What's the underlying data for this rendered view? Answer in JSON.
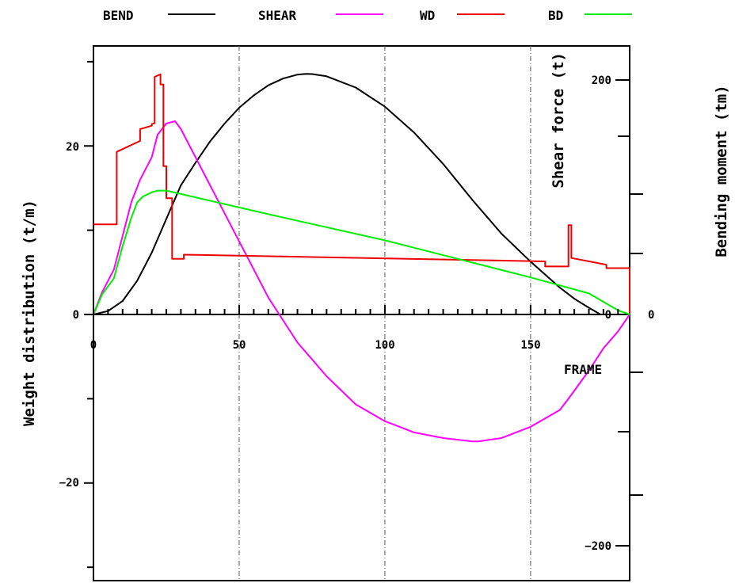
{
  "chart_data": {
    "type": "line",
    "legend_position": "top",
    "legend": [
      {
        "label": "BEND",
        "color": "#000000"
      },
      {
        "label": "SHEAR",
        "color": "#ff00ff"
      },
      {
        "label": "WD",
        "color": "#ee0000"
      },
      {
        "label": "BD",
        "color": "#00ee00"
      }
    ],
    "x_axis": {
      "label": "FRAME",
      "range": [
        0,
        184
      ],
      "ticks": [
        0,
        50,
        100,
        150
      ],
      "tick_labels": [
        "0",
        "50",
        "100",
        "150"
      ],
      "gridlines": [
        50,
        100,
        150
      ]
    },
    "y_left": {
      "label": "Weight distribution (t/m)",
      "range": [
        -32,
        32
      ],
      "ticks": [
        0,
        20,
        -20
      ],
      "tick_labels": [
        "0",
        "20",
        "−20"
      ]
    },
    "y_shear": {
      "label": "Shear force (t)",
      "range": [
        -240,
        240
      ],
      "ticks": [
        0,
        200,
        -200
      ],
      "tick_labels": [
        "0",
        "200",
        "−200"
      ]
    },
    "y_bend": {
      "label": "Bending moment (tm)",
      "range": [
        -2400,
        2400
      ],
      "tick_labels": [
        "0"
      ]
    },
    "series": [
      {
        "name": "BEND",
        "axis": "bend",
        "color": "#000000",
        "x": [
          0,
          5,
          10,
          15,
          20,
          25,
          30,
          35,
          40,
          45,
          50,
          55,
          60,
          65,
          70,
          73,
          75,
          80,
          90,
          100,
          110,
          120,
          130,
          140,
          150,
          160,
          165,
          170,
          174
        ],
        "y": [
          0,
          30,
          120,
          300,
          550,
          850,
          1150,
          1350,
          1540,
          1700,
          1840,
          1950,
          2040,
          2100,
          2135,
          2142,
          2140,
          2120,
          2020,
          1850,
          1620,
          1340,
          1020,
          720,
          470,
          240,
          140,
          60,
          0
        ]
      },
      {
        "name": "SHEAR",
        "axis": "shear",
        "color": "#ff00ff",
        "x": [
          0,
          3,
          7,
          10,
          13,
          16,
          20,
          22,
          25,
          28,
          30,
          35,
          40,
          45,
          50,
          60,
          70,
          75,
          80,
          90,
          100,
          110,
          120,
          130,
          132,
          140,
          150,
          160,
          163,
          170,
          175,
          180,
          184
        ],
        "y": [
          0,
          20,
          40,
          70,
          100,
          120,
          140,
          160,
          170,
          172,
          165,
          140,
          115,
          90,
          65,
          15,
          -25,
          -40,
          -55,
          -80,
          -95,
          -105,
          -110,
          -113,
          -113,
          -110,
          -100,
          -85,
          -75,
          -50,
          -30,
          -15,
          0
        ]
      },
      {
        "name": "WD",
        "axis": "left",
        "color": "#ee0000",
        "x": [
          0,
          0,
          8,
          8,
          16,
          16,
          20,
          20,
          21,
          21,
          23,
          23,
          24,
          24,
          25,
          25,
          27,
          27,
          28,
          28,
          31,
          31,
          155,
          155,
          163,
          163,
          164,
          164,
          176,
          176,
          184,
          184
        ],
        "y": [
          10.7,
          10.7,
          10.7,
          19.3,
          20.6,
          22,
          22.4,
          22.6,
          22.7,
          28.2,
          28.5,
          27.3,
          27.3,
          17.6,
          17.6,
          13.8,
          13.8,
          6.6,
          6.6,
          6.6,
          6.6,
          7.1,
          6.3,
          5.7,
          5.7,
          10.6,
          10.6,
          6.7,
          5.9,
          5.5,
          5.5,
          0
        ]
      },
      {
        "name": "BD",
        "axis": "left",
        "color": "#00ee00",
        "x": [
          0,
          3,
          7,
          10,
          13,
          15,
          17,
          20,
          22,
          25,
          30,
          60,
          100,
          150,
          170,
          180,
          184
        ],
        "y": [
          0,
          2.4,
          4.3,
          8.1,
          11.5,
          13.3,
          14,
          14.5,
          14.7,
          14.7,
          14.3,
          11.9,
          8.8,
          4.4,
          2.5,
          0.5,
          0
        ]
      }
    ]
  }
}
